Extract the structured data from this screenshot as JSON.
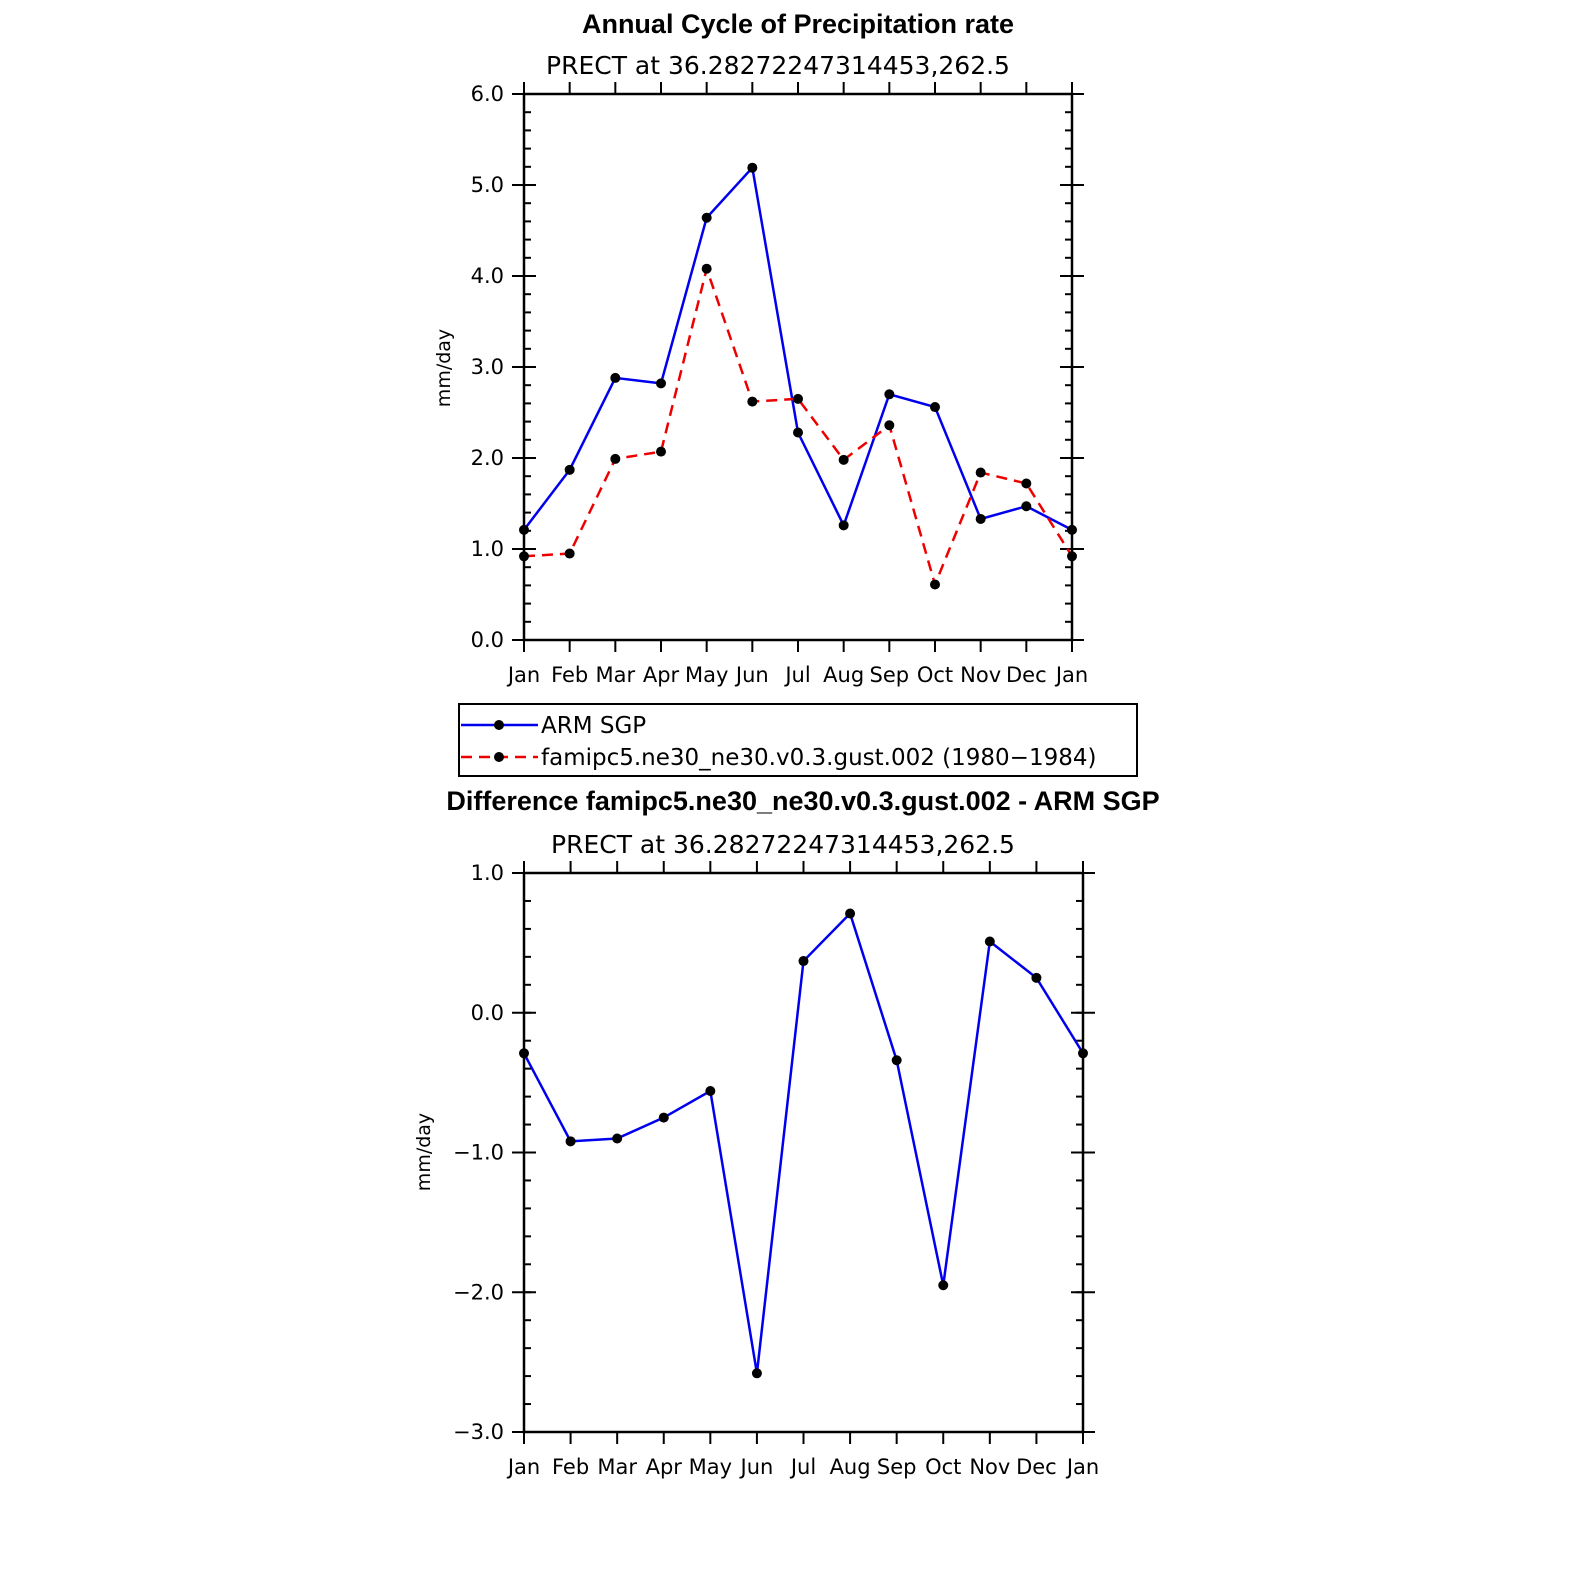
{
  "chart_data": [
    {
      "type": "line",
      "title": "Annual Cycle of Precipitation rate",
      "subtitle": "PRECT at 36.28272247314453,262.5",
      "ylabel": "mm/day",
      "ylim": [
        0,
        6
      ],
      "yticks": [
        0,
        1,
        2,
        3,
        4,
        5,
        6
      ],
      "ytick_labels": [
        "0.0",
        "1.0",
        "2.0",
        "3.0",
        "4.0",
        "5.0",
        "6.0"
      ],
      "categories": [
        "Jan",
        "Feb",
        "Mar",
        "Apr",
        "May",
        "Jun",
        "Jul",
        "Aug",
        "Sep",
        "Oct",
        "Nov",
        "Dec",
        "Jan"
      ],
      "legend_position": "below",
      "series": [
        {
          "name": "ARM SGP",
          "color": "#0000ee",
          "dash": "solid",
          "values": [
            1.21,
            1.87,
            2.88,
            2.82,
            4.64,
            5.19,
            2.28,
            1.26,
            2.7,
            2.56,
            1.33,
            1.47,
            1.21
          ]
        },
        {
          "name": "famipc5.ne30_ne30.v0.3.gust.002 (1980−1984)",
          "color": "#ee0000",
          "dash": "dashed",
          "values": [
            0.92,
            0.95,
            1.99,
            2.07,
            4.08,
            2.62,
            2.65,
            1.98,
            2.36,
            0.61,
            1.84,
            1.72,
            0.92
          ]
        }
      ]
    },
    {
      "type": "line",
      "title": "Difference famipc5.ne30_ne30.v0.3.gust.002 - ARM SGP",
      "subtitle": "PRECT at 36.28272247314453,262.5",
      "ylabel": "mm/day",
      "ylim": [
        -3,
        1
      ],
      "yticks": [
        -3,
        -2,
        -1,
        0,
        1
      ],
      "ytick_labels": [
        "−3.0",
        "−2.0",
        "−1.0",
        "0.0",
        "1.0"
      ],
      "categories": [
        "Jan",
        "Feb",
        "Mar",
        "Apr",
        "May",
        "Jun",
        "Jul",
        "Aug",
        "Sep",
        "Oct",
        "Nov",
        "Dec",
        "Jan"
      ],
      "series": [
        {
          "color": "#0000ee",
          "dash": "solid",
          "values": [
            -0.29,
            -0.92,
            -0.9,
            -0.75,
            -0.56,
            -2.58,
            0.37,
            0.71,
            -0.34,
            -1.95,
            0.51,
            0.25,
            -0.29
          ]
        }
      ]
    }
  ]
}
